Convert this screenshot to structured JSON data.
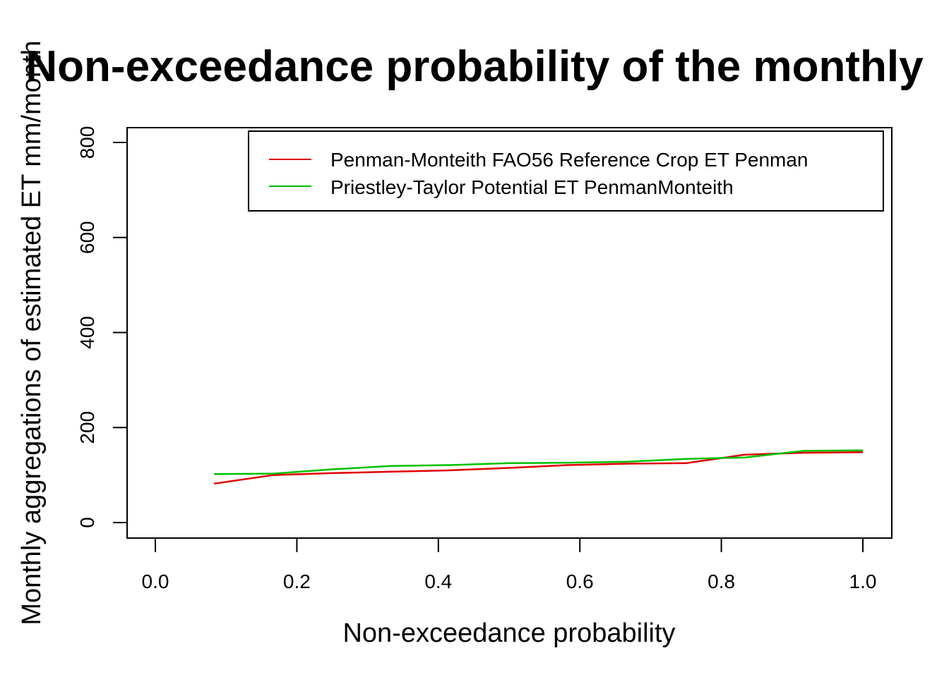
{
  "chart_data": {
    "type": "line",
    "title": "Non-exceedance probability of the monthly",
    "xlabel": "Non-exceedance probability",
    "ylabel": "Monthly aggregations of estimated ET mm/month",
    "xlim": [
      0.0,
      1.0
    ],
    "ylim": [
      0,
      800
    ],
    "x_ticks": [
      "0.0",
      "0.2",
      "0.4",
      "0.6",
      "0.8",
      "1.0"
    ],
    "y_ticks": [
      "0",
      "200",
      "400",
      "600",
      "800"
    ],
    "grid": false,
    "legend_position": "top-right",
    "series": [
      {
        "name": "Penman-Monteith FAO56 Reference Crop ET Penman",
        "color": "#DF0000",
        "x": [
          0.083,
          0.167,
          0.25,
          0.333,
          0.417,
          0.5,
          0.583,
          0.667,
          0.75,
          0.833,
          0.917,
          1.0
        ],
        "y": [
          82,
          100,
          104,
          107,
          110,
          115,
          121,
          124,
          125,
          143,
          147,
          148
        ]
      },
      {
        "name": "Priestley-Taylor Potential ET PenmanMonteith",
        "color": "#00C000",
        "x": [
          0.083,
          0.167,
          0.25,
          0.333,
          0.417,
          0.5,
          0.583,
          0.667,
          0.75,
          0.833,
          0.917,
          1.0
        ],
        "y": [
          102,
          103,
          112,
          119,
          121,
          125,
          126,
          128,
          134,
          137,
          151,
          152
        ]
      }
    ]
  }
}
